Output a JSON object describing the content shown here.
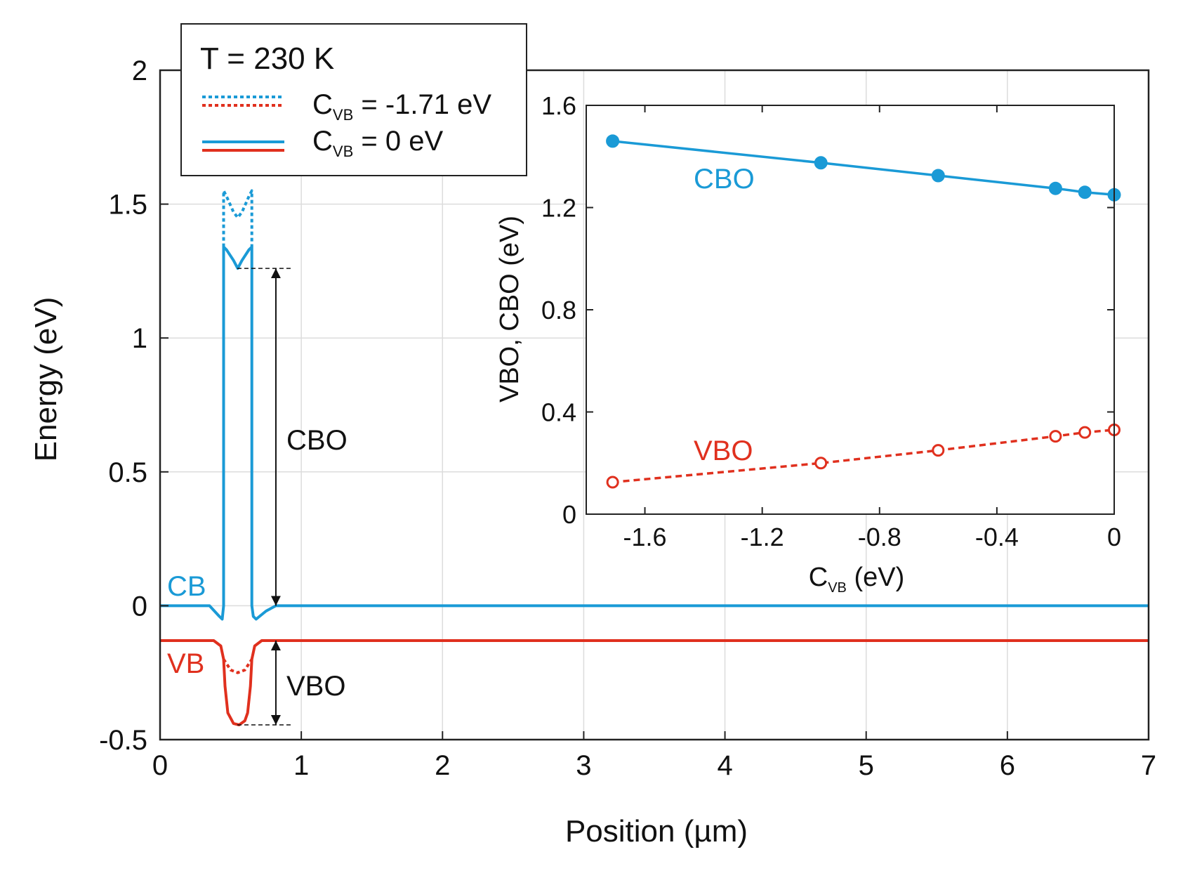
{
  "chart_data": [
    {
      "type": "line",
      "title": "",
      "xlabel": "Position (µm)",
      "ylabel": "Energy (eV)",
      "xlim": [
        0,
        7
      ],
      "ylim": [
        -0.5,
        2
      ],
      "x_ticks": [
        "0",
        "1",
        "2",
        "3",
        "4",
        "5",
        "6",
        "7"
      ],
      "y_ticks": [
        "-0.5",
        "0",
        "0.5",
        "1",
        "1.5",
        "2"
      ],
      "grid": true,
      "legend": {
        "title": "T = 230 K",
        "entries": [
          {
            "prefix": "C",
            "subscript": "VB",
            "suffix": " = -1.71 eV",
            "style": "dotted"
          },
          {
            "prefix": "C",
            "subscript": "VB",
            "suffix": " = 0 eV",
            "style": "solid"
          }
        ],
        "placement": "top-left"
      },
      "series": [
        {
          "name": "CB (C_VB = 0 eV)",
          "color": "#1a9ad6",
          "style": "solid",
          "x": [
            0,
            0.35,
            0.42,
            0.44,
            0.45,
            0.45,
            0.47,
            0.52,
            0.55,
            0.58,
            0.63,
            0.65,
            0.65,
            0.66,
            0.68,
            0.75,
            0.82,
            7
          ],
          "y": [
            0,
            0,
            -0.04,
            -0.05,
            0,
            1.34,
            1.33,
            1.29,
            1.26,
            1.29,
            1.33,
            1.34,
            0,
            -0.04,
            -0.05,
            -0.02,
            0,
            0
          ]
        },
        {
          "name": "CB (C_VB = -1.71 eV)",
          "color": "#1a9ad6",
          "style": "dotted",
          "x": [
            0.45,
            0.45,
            0.47,
            0.52,
            0.55,
            0.58,
            0.63,
            0.65,
            0.65
          ],
          "y": [
            1.34,
            1.55,
            1.53,
            1.47,
            1.45,
            1.47,
            1.53,
            1.55,
            1.34
          ]
        },
        {
          "name": "VB (C_VB = 0 eV)",
          "color": "#e0301e",
          "style": "solid",
          "x": [
            0,
            0.38,
            0.43,
            0.45,
            0.46,
            0.48,
            0.52,
            0.56,
            0.6,
            0.62,
            0.64,
            0.65,
            0.67,
            0.72,
            7
          ],
          "y": [
            -0.13,
            -0.13,
            -0.15,
            -0.2,
            -0.3,
            -0.4,
            -0.44,
            -0.445,
            -0.43,
            -0.4,
            -0.3,
            -0.2,
            -0.15,
            -0.13,
            -0.13
          ]
        },
        {
          "name": "VB (C_VB = -1.71 eV)",
          "color": "#e0301e",
          "style": "dotted",
          "x": [
            0.45,
            0.5,
            0.55,
            0.6,
            0.65
          ],
          "y": [
            -0.2,
            -0.24,
            -0.25,
            -0.24,
            -0.2
          ]
        }
      ],
      "annotations": [
        {
          "text": "CB",
          "color": "#1a9ad6"
        },
        {
          "text": "VB",
          "color": "#e0301e"
        },
        {
          "text": "CBO",
          "color": "#111111",
          "y_from": 0.0,
          "y_to": 1.26,
          "x": 0.82
        },
        {
          "text": "VBO",
          "color": "#111111",
          "y_from": -0.13,
          "y_to": -0.445,
          "x": 0.82
        }
      ]
    },
    {
      "type": "line",
      "title": "",
      "xlabel_prefix": "C",
      "xlabel_subscript": "VB",
      "xlabel_suffix": " (eV)",
      "ylabel": "VBO, CBO (eV)",
      "xlim": [
        -1.8,
        0
      ],
      "ylim": [
        0,
        1.6
      ],
      "x_ticks": [
        "-1.6",
        "-1.2",
        "-0.8",
        "-0.4",
        "0"
      ],
      "y_ticks": [
        "0",
        "0.4",
        "0.8",
        "1.2",
        "1.6"
      ],
      "grid": false,
      "series": [
        {
          "name": "CBO",
          "color": "#1a9ad6",
          "style": "solid",
          "marker": "filled-circle",
          "x": [
            -1.71,
            -1.0,
            -0.6,
            -0.2,
            -0.1,
            0
          ],
          "y": [
            1.46,
            1.375,
            1.325,
            1.275,
            1.26,
            1.25
          ]
        },
        {
          "name": "VBO",
          "color": "#e0301e",
          "style": "dashed",
          "marker": "open-circle",
          "x": [
            -1.71,
            -1.0,
            -0.6,
            -0.2,
            -0.1,
            0
          ],
          "y": [
            0.125,
            0.2,
            0.25,
            0.305,
            0.32,
            0.33
          ]
        }
      ],
      "series_labels": [
        {
          "text": "CBO",
          "color": "#1a9ad6"
        },
        {
          "text": "VBO",
          "color": "#e0301e"
        }
      ]
    }
  ]
}
